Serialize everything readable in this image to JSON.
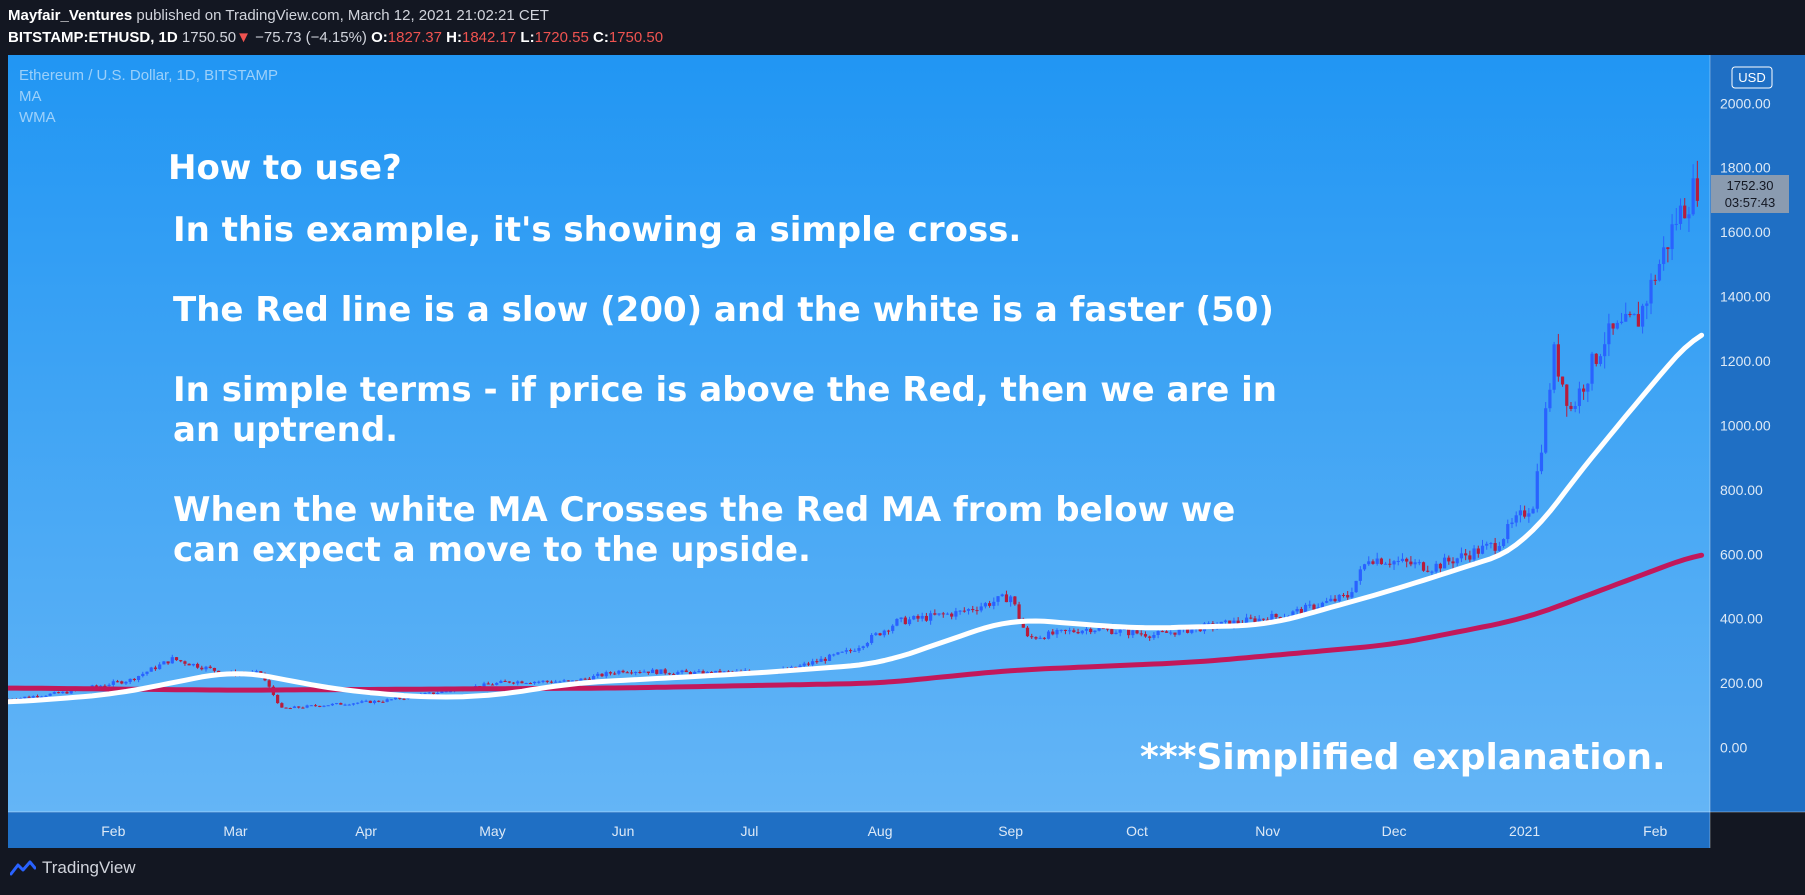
{
  "header": {
    "author": "Mayfair_Ventures",
    "published_text": "published on TradingView.com, March 12, 2021 21:02:21 CET",
    "symbol": "BITSTAMP:ETHUSD, 1D",
    "last_price": "1750.50",
    "change": "−75.73 (−4.15%)",
    "open_label": "O:",
    "open": "1827.37",
    "high_label": "H:",
    "high": "1842.17",
    "low_label": "L:",
    "low": "1720.55",
    "close_label": "C:",
    "close": "1750.50"
  },
  "legend": {
    "title": "Ethereum / U.S. Dollar, 1D, BITSTAMP",
    "indicator1": "MA",
    "indicator2": "WMA"
  },
  "annotations": {
    "heading": "How to use?",
    "line1": "In this example, it's showing a simple cross.",
    "line2": "The Red line is a slow (200) and the white is a faster (50)",
    "line3a": "In simple terms - if price is above the Red, then we are in",
    "line3b": "an uptrend.",
    "line4a": "When the white MA Crosses the Red MA from below we",
    "line4b": "can expect a move to the upside.",
    "footnote": "***Simplified explanation."
  },
  "price_scale": {
    "currency": "USD",
    "current_price": "1752.30",
    "countdown": "03:57:43"
  },
  "footer": {
    "brand": "TradingView"
  },
  "colors": {
    "background_top": "#2196f3",
    "background_bottom": "#64b5f6",
    "bull_candle": "#2962ff",
    "bear_candle": "#b71c3c",
    "slow_ma": "#c2185b",
    "fast_ma": "#ffffff",
    "down_color": "#ef5350"
  },
  "chart_data": {
    "type": "candlestick",
    "title": "Ethereum / U.S. Dollar, 1D, BITSTAMP",
    "ylim": [
      -200,
      2150
    ],
    "y_ticks": [
      0,
      200,
      400,
      600,
      800,
      1000,
      1200,
      1400,
      1600,
      1800,
      2000
    ],
    "y_tick_labels": [
      "0.00",
      "200.00",
      "400.00",
      "600.00",
      "800.00",
      "1000.00",
      "1200.00",
      "1400.00",
      "1600.00",
      "1800.00",
      "2000.00"
    ],
    "x_range": [
      "2020-01-07",
      "2021-02-14"
    ],
    "x_ticks": [
      {
        "date": "2020-02-01",
        "label": "Feb"
      },
      {
        "date": "2020-03-01",
        "label": "Mar"
      },
      {
        "date": "2020-04-01",
        "label": "Apr"
      },
      {
        "date": "2020-05-01",
        "label": "May"
      },
      {
        "date": "2020-06-01",
        "label": "Jun"
      },
      {
        "date": "2020-07-01",
        "label": "Jul"
      },
      {
        "date": "2020-08-01",
        "label": "Aug"
      },
      {
        "date": "2020-09-01",
        "label": "Sep"
      },
      {
        "date": "2020-10-01",
        "label": "Oct"
      },
      {
        "date": "2020-11-01",
        "label": "Nov"
      },
      {
        "date": "2020-12-01",
        "label": "Dec"
      },
      {
        "date": "2021-01-01",
        "label": "2021"
      },
      {
        "date": "2021-02-01",
        "label": "Feb"
      }
    ],
    "price_path": [
      {
        "date": "2020-01-07",
        "close": 150
      },
      {
        "date": "2020-01-20",
        "close": 170
      },
      {
        "date": "2020-02-05",
        "close": 210
      },
      {
        "date": "2020-02-15",
        "close": 275
      },
      {
        "date": "2020-02-28",
        "close": 230
      },
      {
        "date": "2020-03-07",
        "close": 230
      },
      {
        "date": "2020-03-12",
        "close": 120
      },
      {
        "date": "2020-03-20",
        "close": 130
      },
      {
        "date": "2020-04-05",
        "close": 145
      },
      {
        "date": "2020-04-20",
        "close": 175
      },
      {
        "date": "2020-05-05",
        "close": 205
      },
      {
        "date": "2020-05-20",
        "close": 205
      },
      {
        "date": "2020-06-01",
        "close": 240
      },
      {
        "date": "2020-06-20",
        "close": 230
      },
      {
        "date": "2020-07-10",
        "close": 240
      },
      {
        "date": "2020-07-25",
        "close": 300
      },
      {
        "date": "2020-08-05",
        "close": 390
      },
      {
        "date": "2020-08-20",
        "close": 420
      },
      {
        "date": "2020-09-01",
        "close": 470
      },
      {
        "date": "2020-09-05",
        "close": 340
      },
      {
        "date": "2020-09-20",
        "close": 370
      },
      {
        "date": "2020-10-05",
        "close": 350
      },
      {
        "date": "2020-10-20",
        "close": 380
      },
      {
        "date": "2020-11-05",
        "close": 410
      },
      {
        "date": "2020-11-20",
        "close": 470
      },
      {
        "date": "2020-11-25",
        "close": 590
      },
      {
        "date": "2020-12-10",
        "close": 560
      },
      {
        "date": "2020-12-25",
        "close": 630
      },
      {
        "date": "2021-01-03",
        "close": 760
      },
      {
        "date": "2021-01-08",
        "close": 1220
      },
      {
        "date": "2021-01-12",
        "close": 1050
      },
      {
        "date": "2021-01-20",
        "close": 1270
      },
      {
        "date": "2021-01-28",
        "close": 1330
      },
      {
        "date": "2021-02-06",
        "close": 1640
      },
      {
        "date": "2021-02-11",
        "close": 1750
      }
    ],
    "series": [
      {
        "name": "MA",
        "type": "line",
        "points": [
          {
            "date": "2020-01-07",
            "value": 185
          },
          {
            "date": "2020-03-01",
            "value": 178
          },
          {
            "date": "2020-06-01",
            "value": 185
          },
          {
            "date": "2020-08-01",
            "value": 200
          },
          {
            "date": "2020-09-01",
            "value": 240
          },
          {
            "date": "2020-10-15",
            "value": 265
          },
          {
            "date": "2020-12-01",
            "value": 320
          },
          {
            "date": "2021-01-01",
            "value": 400
          },
          {
            "date": "2021-02-13",
            "value": 610
          }
        ]
      },
      {
        "name": "WMA",
        "type": "line",
        "points": [
          {
            "date": "2020-01-07",
            "value": 140
          },
          {
            "date": "2020-02-01",
            "value": 165
          },
          {
            "date": "2020-03-01",
            "value": 240
          },
          {
            "date": "2020-03-25",
            "value": 180
          },
          {
            "date": "2020-04-15",
            "value": 155
          },
          {
            "date": "2020-05-01",
            "value": 160
          },
          {
            "date": "2020-05-20",
            "value": 200
          },
          {
            "date": "2020-07-01",
            "value": 230
          },
          {
            "date": "2020-08-01",
            "value": 260
          },
          {
            "date": "2020-09-01",
            "value": 400
          },
          {
            "date": "2020-10-01",
            "value": 370
          },
          {
            "date": "2020-11-01",
            "value": 380
          },
          {
            "date": "2020-12-01",
            "value": 490
          },
          {
            "date": "2021-01-01",
            "value": 620
          },
          {
            "date": "2021-01-10",
            "value": 790
          },
          {
            "date": "2021-02-01",
            "value": 1140
          },
          {
            "date": "2021-02-13",
            "value": 1320
          }
        ]
      }
    ]
  }
}
